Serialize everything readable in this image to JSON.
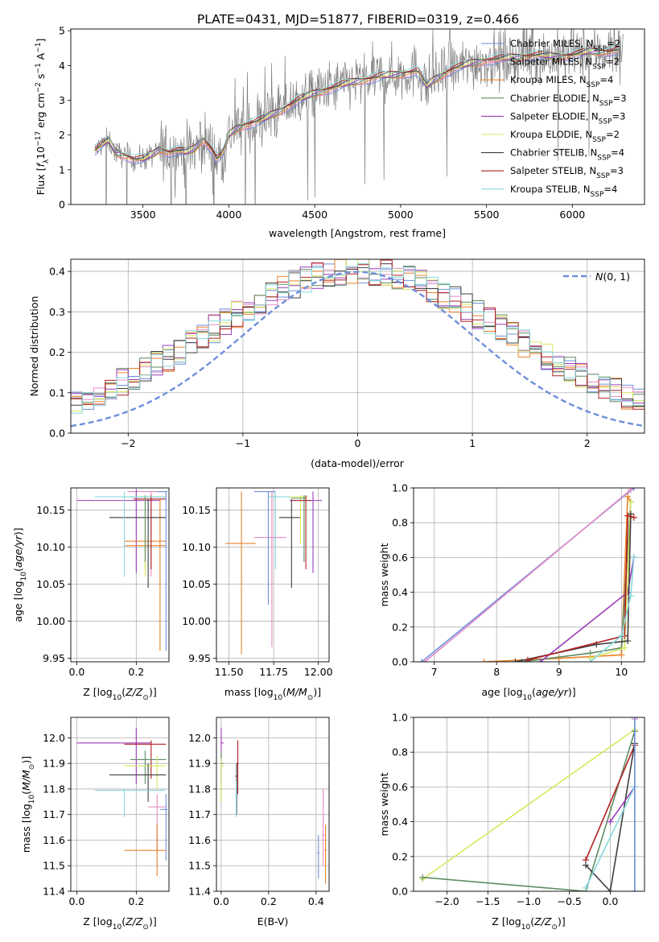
{
  "figure": {
    "title": "PLATE=0431, MJD=51877, FIBERID=0319, z=0.466"
  },
  "colors": {
    "Chabrier MILES": "#6f8fdb",
    "Salpeter MILES": "#e58bc5",
    "Kroupa MILES": "#e9822b",
    "Chabrier ELODIE": "#5e8c63",
    "Salpeter ELODIE": "#9b3cb8",
    "Kroupa ELODIE": "#d7e85f",
    "Chabrier STELIB": "#3f3f3f",
    "Salpeter STELIB": "#b02021",
    "Kroupa STELIB": "#86d7dc",
    "data": "#808080",
    "normal": "#6f8fdb"
  },
  "chart_data": [
    {
      "type": "line",
      "panel": "spectrum",
      "title": "PLATE=0431, MJD=51877, FIBERID=0319, z=0.466",
      "xlabel": "wavelength [Angstrom, rest frame]",
      "ylabel": "Flux [f_λ10^-17 erg cm^-2 s^-1 A^-1]",
      "xlim": [
        3080,
        6420
      ],
      "ylim": [
        0,
        5.05
      ],
      "xticks": [
        3500,
        4000,
        4500,
        5000,
        5500,
        6000
      ],
      "yticks": [
        0,
        1,
        2,
        3,
        4,
        5
      ],
      "legend_position": "top-right",
      "series": [
        {
          "name": "Chabrier MILES, N_SSP=2"
        },
        {
          "name": "Salpeter MILES, N_SSP=2"
        },
        {
          "name": "Kroupa MILES, N_SSP=4"
        },
        {
          "name": "Chabrier ELODIE, N_SSP=3"
        },
        {
          "name": "Salpeter ELODIE, N_SSP=3"
        },
        {
          "name": "Kroupa ELODIE, N_SSP=2"
        },
        {
          "name": "Chabrier STELIB, N_SSP=4"
        },
        {
          "name": "Salpeter STELIB, N_SSP=3"
        },
        {
          "name": "Kroupa STELIB, N_SSP=4"
        }
      ],
      "continuum_knots": [
        [
          3220,
          1.55
        ],
        [
          3260,
          1.72
        ],
        [
          3300,
          1.85
        ],
        [
          3340,
          1.5
        ],
        [
          3400,
          1.4
        ],
        [
          3450,
          1.3
        ],
        [
          3500,
          1.3
        ],
        [
          3560,
          1.45
        ],
        [
          3600,
          1.6
        ],
        [
          3650,
          1.5
        ],
        [
          3700,
          1.55
        ],
        [
          3750,
          1.5
        ],
        [
          3800,
          1.6
        ],
        [
          3850,
          1.9
        ],
        [
          3900,
          1.6
        ],
        [
          3930,
          1.3
        ],
        [
          3970,
          1.5
        ],
        [
          4000,
          2.0
        ],
        [
          4050,
          2.2
        ],
        [
          4100,
          2.3
        ],
        [
          4200,
          2.45
        ],
        [
          4300,
          2.7
        ],
        [
          4400,
          3.0
        ],
        [
          4500,
          3.2
        ],
        [
          4600,
          3.35
        ],
        [
          4700,
          3.5
        ],
        [
          4800,
          3.6
        ],
        [
          4900,
          3.7
        ],
        [
          5000,
          3.75
        ],
        [
          5100,
          3.85
        ],
        [
          5150,
          3.4
        ],
        [
          5200,
          3.6
        ],
        [
          5300,
          3.9
        ],
        [
          5400,
          4.05
        ],
        [
          5500,
          4.15
        ],
        [
          5600,
          4.2
        ],
        [
          5700,
          4.25
        ],
        [
          5800,
          4.3
        ],
        [
          5900,
          4.25
        ],
        [
          6000,
          4.3
        ],
        [
          6100,
          4.4
        ],
        [
          6200,
          4.4
        ],
        [
          6270,
          4.45
        ]
      ]
    },
    {
      "type": "histogram",
      "panel": "residuals",
      "xlabel": "(data-model)/error",
      "ylabel": "Normed distribution",
      "xlim": [
        -2.5,
        2.5
      ],
      "ylim": [
        0,
        0.43
      ],
      "xticks": [
        -2,
        -1,
        0,
        1,
        2
      ],
      "yticks": [
        0.0,
        0.1,
        0.2,
        0.3,
        0.4
      ],
      "legend": [
        "N(0,1)"
      ],
      "legend_position": "top-right",
      "grid": true,
      "bin_width": 0.1,
      "bin_start": -2.5
    },
    {
      "type": "errorbar",
      "panel": "Z-age",
      "xlabel": "Z [log10(Z/Z_sun)]",
      "ylabel": "age [log10(age/yr)]",
      "xlim": [
        -0.02,
        0.31
      ],
      "ylim": [
        9.945,
        10.18
      ],
      "xticks": [
        0.0,
        0.2
      ],
      "yticks": [
        9.95,
        10.0,
        10.05,
        10.1,
        10.15
      ],
      "grid": true
    },
    {
      "type": "errorbar",
      "panel": "mass-age",
      "xlabel": "mass [log10(M/M_sun)]",
      "ylabel": "",
      "xlim": [
        11.43,
        12.06
      ],
      "ylim": [
        9.945,
        10.18
      ],
      "xticks": [
        11.5,
        11.75,
        12.0
      ],
      "yticks": [
        9.95,
        10.0,
        10.05,
        10.1,
        10.15
      ],
      "grid": true
    },
    {
      "type": "line",
      "panel": "age-weight",
      "xlabel": "age [log10(age/yr)]",
      "ylabel": "mass weight",
      "xlim": [
        6.67,
        10.37
      ],
      "ylim": [
        0,
        1.0
      ],
      "xticks": [
        7,
        8,
        9,
        10
      ],
      "yticks": [
        0.0,
        0.2,
        0.4,
        0.6,
        0.8,
        1.0
      ],
      "grid": true
    },
    {
      "type": "errorbar",
      "panel": "Z-mass",
      "xlabel": "Z [log10(Z/Z_sun)]",
      "ylabel": "mass [log10(M/M_sun)]",
      "xlim": [
        -0.02,
        0.31
      ],
      "ylim": [
        11.4,
        12.08
      ],
      "xticks": [
        0.0,
        0.2
      ],
      "yticks": [
        11.4,
        11.5,
        11.6,
        11.7,
        11.8,
        11.9,
        12.0
      ],
      "grid": true
    },
    {
      "type": "errorbar",
      "panel": "EBV-mass",
      "xlabel": "E(B-V)",
      "ylabel": "",
      "xlim": [
        -0.02,
        0.455
      ],
      "ylim": [
        11.4,
        12.08
      ],
      "xticks": [
        0.0,
        0.2,
        0.4
      ],
      "yticks": [
        11.4,
        11.5,
        11.6,
        11.7,
        11.8,
        11.9,
        12.0
      ],
      "grid": true
    },
    {
      "type": "line",
      "panel": "Z-weight",
      "xlabel": "Z [log10(Z/Z_sun)]",
      "ylabel": "mass weight",
      "xlim": [
        -2.41,
        0.42
      ],
      "ylim": [
        0,
        1.0
      ],
      "xticks": [
        -2.0,
        -1.5,
        -1.0,
        -0.5,
        0.0
      ],
      "yticks": [
        0.0,
        0.2,
        0.4,
        0.6,
        0.8,
        1.0
      ],
      "grid": true
    }
  ],
  "errorbars": {
    "za": [
      {
        "c": "Salpeter MILES",
        "x": 0.25,
        "xl": 0.17,
        "xh": 0.3,
        "y": 10.175,
        "yl": 10.06,
        "yh": 10.175
      },
      {
        "c": "Salpeter ELODIE",
        "x": 0.2,
        "xl": 0.0,
        "xh": 0.28,
        "y": 10.163,
        "yl": 10.065,
        "yh": 10.178
      },
      {
        "c": "Kroupa MILES",
        "x": 0.28,
        "xl": 0.16,
        "xh": 0.3,
        "y": 10.108,
        "yl": 9.96,
        "yh": 10.165
      },
      {
        "c": "Kroupa MILES",
        "x": 0.23,
        "xl": 0.16,
        "xh": 0.3,
        "y": 10.102,
        "yl": 10.07,
        "yh": 10.15
      },
      {
        "c": "Kroupa ELODIE",
        "x": 0.23,
        "xl": 0.16,
        "xh": 0.3,
        "y": 10.168,
        "yl": 10.06,
        "yh": 10.17
      },
      {
        "c": "Salpeter STELIB",
        "x": 0.25,
        "xl": 0.19,
        "xh": 0.3,
        "y": 10.165,
        "yl": 10.07,
        "yh": 10.17
      },
      {
        "c": "Chabrier STELIB",
        "x": 0.24,
        "xl": 0.11,
        "xh": 0.3,
        "y": 10.14,
        "yl": 10.045,
        "yh": 10.165
      },
      {
        "c": "Chabrier ELODIE",
        "x": 0.23,
        "xl": 0.18,
        "xh": 0.3,
        "y": 10.168,
        "yl": 10.08,
        "yh": 10.17
      },
      {
        "c": "Kroupa STELIB",
        "x": 0.16,
        "xl": 0.06,
        "xh": 0.3,
        "y": 10.168,
        "yl": 10.06,
        "yh": 10.175
      },
      {
        "c": "Chabrier MILES",
        "x": 0.3,
        "xl": 0.27,
        "xh": 0.305,
        "y": 10.175,
        "yl": 9.96,
        "yh": 10.175
      }
    ],
    "ma": [
      {
        "c": "Kroupa MILES",
        "x": 11.57,
        "xl": 11.48,
        "xh": 11.65,
        "y": 10.105,
        "yl": 9.955,
        "yh": 10.175
      },
      {
        "c": "Salpeter MILES",
        "x": 11.74,
        "xl": 11.64,
        "xh": 11.82,
        "y": 10.113,
        "yl": 9.965,
        "yh": 10.175
      },
      {
        "c": "Chabrier MILES",
        "x": 11.72,
        "xl": 11.64,
        "xh": 11.76,
        "y": 10.175,
        "yl": 10.022,
        "yh": 10.175
      },
      {
        "c": "Chabrier STELIB",
        "x": 11.85,
        "xl": 11.78,
        "xh": 11.9,
        "y": 10.14,
        "yl": 10.045,
        "yh": 10.165
      },
      {
        "c": "Kroupa STELIB",
        "x": 11.76,
        "xl": 11.72,
        "xh": 11.86,
        "y": 10.168,
        "yl": 10.07,
        "yh": 10.175
      },
      {
        "c": "Kroupa ELODIE",
        "x": 11.9,
        "xl": 11.84,
        "xh": 11.94,
        "y": 10.168,
        "yl": 10.105,
        "yh": 10.17
      },
      {
        "c": "Salpeter ELODIE",
        "x": 11.97,
        "xl": 11.84,
        "xh": 12.02,
        "y": 10.163,
        "yl": 10.065,
        "yh": 10.175
      },
      {
        "c": "Salpeter STELIB",
        "x": 11.93,
        "xl": 11.85,
        "xh": 11.96,
        "y": 10.163,
        "yl": 10.07,
        "yh": 10.17
      },
      {
        "c": "Chabrier ELODIE",
        "x": 11.92,
        "xl": 11.85,
        "xh": 11.93,
        "y": 10.166,
        "yl": 10.08,
        "yh": 10.17
      }
    ],
    "zm": [
      {
        "c": "Salpeter ELODIE",
        "x": 0.2,
        "xl": 0.0,
        "xh": 0.25,
        "y": 11.98,
        "yl": 11.82,
        "yh": 12.04
      },
      {
        "c": "Salpeter STELIB",
        "x": 0.25,
        "xl": 0.16,
        "xh": 0.3,
        "y": 11.975,
        "yl": 11.84,
        "yh": 11.99
      },
      {
        "c": "Chabrier ELODIE",
        "x": 0.23,
        "xl": 0.18,
        "xh": 0.3,
        "y": 11.915,
        "yl": 11.82,
        "yh": 11.95
      },
      {
        "c": "Kroupa ELODIE",
        "x": 0.27,
        "xl": 0.16,
        "xh": 0.3,
        "y": 11.89,
        "yl": 11.8,
        "yh": 11.93
      },
      {
        "c": "Chabrier STELIB",
        "x": 0.24,
        "xl": 0.11,
        "xh": 0.3,
        "y": 11.855,
        "yl": 11.75,
        "yh": 11.9
      },
      {
        "c": "Kroupa STELIB",
        "x": 0.16,
        "xl": 0.06,
        "xh": 0.3,
        "y": 11.795,
        "yl": 11.69,
        "yh": 11.8
      },
      {
        "c": "Salpeter MILES",
        "x": 0.27,
        "xl": 0.24,
        "xh": 0.3,
        "y": 11.73,
        "yl": 11.55,
        "yh": 11.78
      },
      {
        "c": "Kroupa MILES",
        "x": 0.27,
        "xl": 0.16,
        "xh": 0.3,
        "y": 11.56,
        "yl": 11.46,
        "yh": 11.66
      },
      {
        "c": "Chabrier MILES",
        "x": 0.3,
        "xl": 0.28,
        "xh": 0.305,
        "y": 11.72,
        "yl": 11.52,
        "yh": 11.78
      }
    ],
    "em": [
      {
        "c": "Salpeter ELODIE",
        "x": 0.0,
        "xl": 0.0,
        "xh": 0.01,
        "y": 11.98,
        "yl": 11.82,
        "yh": 12.04
      },
      {
        "c": "Chabrier ELODIE",
        "x": 0.0,
        "xl": 0.0,
        "xh": 0.01,
        "y": 11.9,
        "yl": 11.75,
        "yh": 11.95
      },
      {
        "c": "Kroupa ELODIE",
        "x": 0.0,
        "xl": 0.0,
        "xh": 0.01,
        "y": 11.89,
        "yl": 11.75,
        "yh": 11.92
      },
      {
        "c": "Salpeter STELIB",
        "x": 0.07,
        "xl": 0.065,
        "xh": 0.075,
        "y": 11.9,
        "yl": 11.78,
        "yh": 11.99
      },
      {
        "c": "Chabrier STELIB",
        "x": 0.065,
        "xl": 0.06,
        "xh": 0.07,
        "y": 11.85,
        "yl": 11.7,
        "yh": 11.9
      },
      {
        "c": "Kroupa STELIB",
        "x": 0.063,
        "xl": 0.06,
        "xh": 0.065,
        "y": 11.8,
        "yl": 11.69,
        "yh": 11.83
      },
      {
        "c": "Chabrier MILES",
        "x": 0.41,
        "xl": 0.405,
        "xh": 0.415,
        "y": 11.55,
        "yl": 11.45,
        "yh": 11.62
      },
      {
        "c": "Salpeter MILES",
        "x": 0.43,
        "xl": 0.425,
        "xh": 0.435,
        "y": 11.62,
        "yl": 11.5,
        "yh": 11.8
      },
      {
        "c": "Kroupa MILES",
        "x": 0.44,
        "xl": 0.435,
        "xh": 0.445,
        "y": 11.56,
        "yl": 11.43,
        "yh": 11.66
      }
    ]
  },
  "weights": {
    "age": [
      {
        "c": "Chabrier MILES",
        "pts": [
          [
            6.8,
            0.0
          ],
          [
            10.2,
            1.0
          ]
        ]
      },
      {
        "c": "Salpeter MILES",
        "pts": [
          [
            6.85,
            0.0
          ],
          [
            10.15,
            0.99
          ]
        ]
      },
      {
        "c": "Kroupa MILES",
        "pts": [
          [
            7.8,
            0.0
          ],
          [
            9.0,
            0.02
          ],
          [
            10.0,
            0.04
          ],
          [
            10.1,
            0.95
          ],
          [
            10.15,
            0.92
          ]
        ]
      },
      {
        "c": "Chabrier ELODIE",
        "pts": [
          [
            8.4,
            0.0
          ],
          [
            9.5,
            0.05
          ],
          [
            10.0,
            0.08
          ],
          [
            10.15,
            0.92
          ]
        ]
      },
      {
        "c": "Salpeter ELODIE",
        "pts": [
          [
            8.7,
            0.0
          ],
          [
            10.1,
            0.4
          ],
          [
            10.2,
            0.6
          ]
        ]
      },
      {
        "c": "Kroupa ELODIE",
        "pts": [
          [
            9.5,
            0.02
          ],
          [
            10.05,
            0.08
          ],
          [
            10.15,
            0.92
          ]
        ]
      },
      {
        "c": "Chabrier STELIB",
        "pts": [
          [
            8.3,
            0.0
          ],
          [
            9.6,
            0.1
          ],
          [
            10.1,
            0.12
          ],
          [
            10.15,
            0.85
          ]
        ]
      },
      {
        "c": "Salpeter STELIB",
        "pts": [
          [
            8.5,
            0.01
          ],
          [
            10.05,
            0.15
          ],
          [
            10.1,
            0.84
          ],
          [
            10.2,
            0.83
          ]
        ]
      },
      {
        "c": "Kroupa STELIB",
        "pts": [
          [
            9.5,
            0.0
          ],
          [
            10.0,
            0.15
          ],
          [
            10.15,
            0.38
          ],
          [
            10.2,
            0.6
          ]
        ]
      }
    ],
    "z": [
      {
        "c": "Kroupa ELODIE",
        "pts": [
          [
            -2.3,
            0.07
          ],
          [
            0.3,
            0.93
          ]
        ]
      },
      {
        "c": "Chabrier ELODIE",
        "pts": [
          [
            -2.3,
            0.08
          ],
          [
            -0.3,
            0.0
          ],
          [
            0.3,
            0.92
          ]
        ]
      },
      {
        "c": "Salpeter STELIB",
        "pts": [
          [
            -0.3,
            0.18
          ],
          [
            0.3,
            0.84
          ]
        ]
      },
      {
        "c": "Chabrier STELIB",
        "pts": [
          [
            -0.3,
            0.15
          ],
          [
            0.0,
            0.0
          ],
          [
            0.3,
            0.85
          ]
        ]
      },
      {
        "c": "Salpeter ELODIE",
        "pts": [
          [
            0.0,
            0.4
          ],
          [
            0.3,
            0.6
          ]
        ]
      },
      {
        "c": "Kroupa STELIB",
        "pts": [
          [
            -0.3,
            0.02
          ],
          [
            0.3,
            0.6
          ]
        ]
      },
      {
        "c": "Salpeter MILES",
        "pts": [
          [
            0.3,
            0.0
          ],
          [
            0.3,
            0.99
          ]
        ]
      },
      {
        "c": "Chabrier MILES",
        "pts": [
          [
            0.3,
            0.0
          ],
          [
            0.3,
            1.0
          ]
        ]
      }
    ]
  }
}
